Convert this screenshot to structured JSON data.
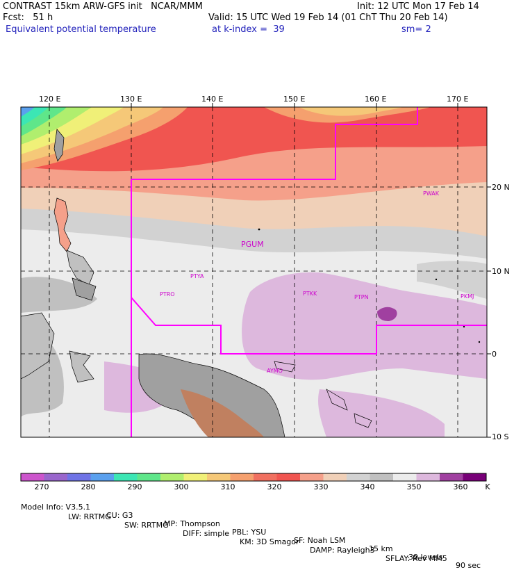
{
  "header": {
    "line1_left": "CONTRAST 15km ARW-GFS init   NCAR/MMM",
    "line1_right": "Init: 12 UTC Mon 17 Feb 14",
    "line2_left": "Fcst:   51 h",
    "line2_right": "Valid: 15 UTC Wed 19 Feb 14 (01 ChT Thu 20 Feb 14)",
    "line3_left": "Equivalent potential temperature",
    "line3_mid": "at k-index =  39",
    "line3_right": "sm= 2"
  },
  "map": {
    "lon_labels": [
      "120 E",
      "130 E",
      "140 E",
      "150 E",
      "160 E",
      "170 E"
    ],
    "lat_labels": [
      "20 N",
      "10 N",
      "0",
      "10 S"
    ],
    "stations": [
      "PWAK",
      "PGUM",
      "PTYA",
      "PTRO",
      "PTKK",
      "PTPN",
      "PKMJ",
      "AYMO"
    ],
    "colors": {
      "boundary": "#ff00ff",
      "station_label": "#cc00cc",
      "grid": "#000000",
      "land_gray": "#a0a0a0",
      "highland_brown": "#c08060"
    }
  },
  "colorbar": {
    "labels": [
      "270",
      "280",
      "290",
      "300",
      "310",
      "320",
      "330",
      "340",
      "350",
      "360"
    ],
    "unit": "K",
    "colors": [
      "#cc55cc",
      "#9966cc",
      "#6f73e6",
      "#5aa0ee",
      "#3ce6b4",
      "#5fe68a",
      "#b0ee6e",
      "#f0f078",
      "#f5c878",
      "#f5a06e",
      "#f07060",
      "#f05550",
      "#f5a08a",
      "#f0d0b8",
      "#d2d2d2",
      "#c0c0c0",
      "#ececec",
      "#ddb8dd",
      "#a040a0",
      "#780078"
    ]
  },
  "footer": {
    "line1": [
      "Model Info: V3.5.1",
      "CU: G3",
      "MP: Thompson",
      "PBL: YSU",
      "SF: Noah LSM",
      "15 km",
      "39 levels",
      "90 sec"
    ],
    "line2": [
      "LW: RRTMG",
      "SW: RRTMG",
      "DIFF: simple",
      "KM: 3D Smagor",
      "DAMP: Rayleigh3",
      "SFLAY: Rev MM5"
    ]
  }
}
